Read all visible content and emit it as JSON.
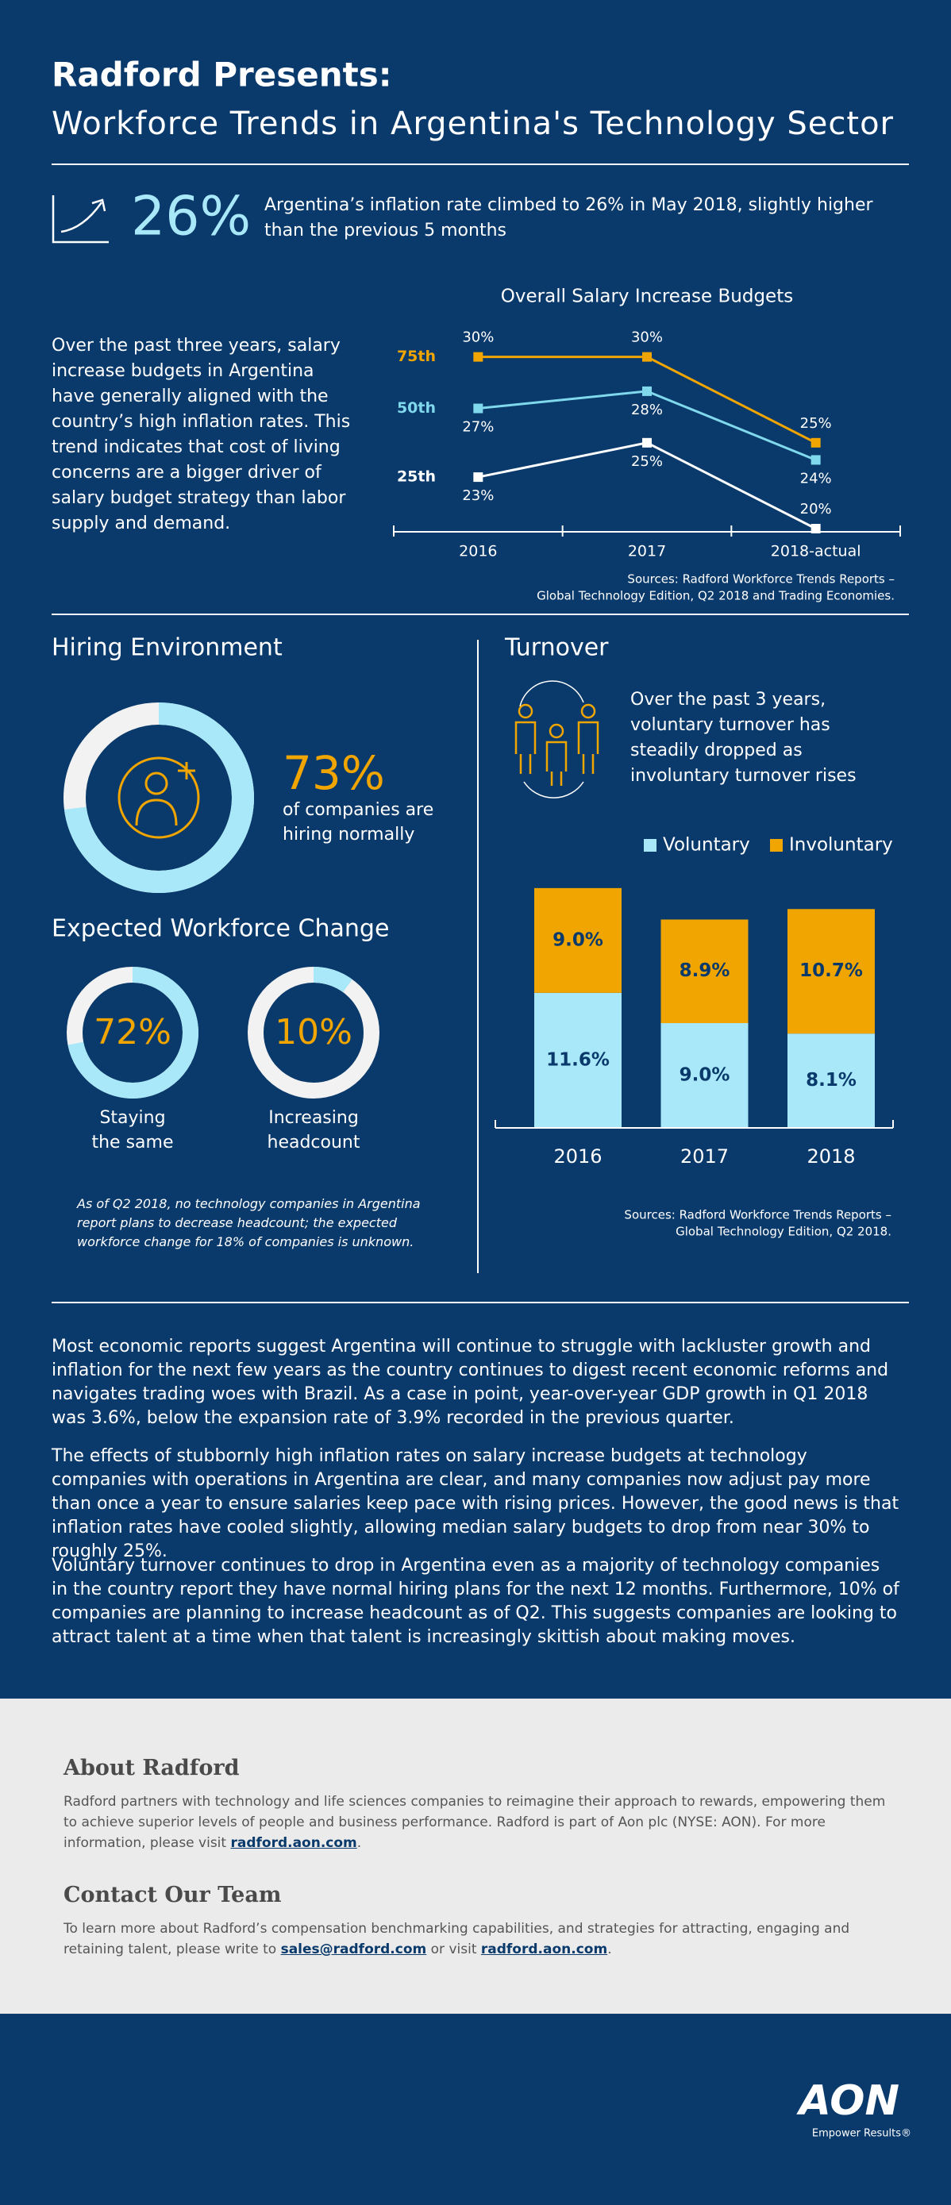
{
  "header": {
    "title": "Radford Presents:",
    "subtitle": "Workforce Trends in Argentina's Technology Sector"
  },
  "inflation": {
    "value_label": "26%",
    "text": "Argentina’s inflation rate climbed to 26% in May 2018, slightly higher than the previous 5 months"
  },
  "salary_text": "Over the past three years, salary increase budgets in Argentina have generally aligned with the country’s high inflation rates. This trend indicates that cost of living concerns are a bigger driver of salary budget strategy than labor supply and demand.",
  "sources_1": [
    "Sources: Radford Workforce Trends Reports –",
    "Global Technology Edition, Q2 2018 and Trading Economies."
  ],
  "hiring_heading": "Hiring Environment",
  "workforce_heading": "Expected Workforce Change",
  "workforce_note": "As of Q2 2018, no technology companies in Argentina report plans to decrease headcount; the expected workforce change for 18% of companies is unknown.",
  "turnover_heading": "Turnover",
  "turnover_text": "Over the past 3 years, voluntary turnover has steadily dropped as involuntary turnover rises",
  "sources_2": [
    "Sources: Radford Workforce Trends Reports –",
    "Global Technology Edition, Q2 2018."
  ],
  "paragraphs": [
    "Most economic reports suggest Argentina will continue to struggle with lackluster growth and inflation for the next few years as the country continues to digest recent economic reforms and navigates trading woes with Brazil. As a case in point, year-over-year GDP growth in Q1 2018 was 3.6%, below the expansion rate of 3.9% recorded in the previous quarter.",
    "The effects of stubbornly high inflation rates on salary increase budgets at technology companies with operations in Argentina are clear, and many companies now adjust pay more than once a year to ensure salaries keep pace with rising prices. However, the good news is that inflation rates have cooled slightly, allowing median salary budgets to drop from near 30% to roughly 25%.",
    "Voluntary turnover continues to drop in Argentina even as a majority of technology companies in the country report they have normal hiring plans for the next 12 months. Furthermore, 10% of companies are planning to increase headcount as of Q2. This suggests companies are looking to attract talent at a time when that talent is increasingly skittish about making moves."
  ],
  "about": {
    "heading": "About Radford",
    "text": "Radford partners with technology and life sciences companies to reimagine their approach to rewards, empowering them to achieve superior levels of people and business performance. Radford is part of Aon plc (NYSE: AON). For more information, please visit",
    "link": "radford.aon.com",
    "end": "."
  },
  "contact": {
    "heading": "Contact Our Team",
    "text": "To learn more about Radford’s compensation benchmarking capabilities, and strategies for attracting, engaging and retaining talent, please write to",
    "email": "sales@radford.com",
    "middle": "or visit",
    "link": "radford.aon.com",
    "end": "."
  },
  "footer": {
    "logo": "AON",
    "tagline": "Empower Results®"
  },
  "chart_data": [
    {
      "type": "line",
      "title": "Overall Salary Increase Budgets",
      "categories": [
        "2016",
        "2017",
        "2018-actual"
      ],
      "series": [
        {
          "name": "75th",
          "color": "#f0a500",
          "values": [
            30,
            30,
            25
          ],
          "value_labels": [
            "30%",
            "30%",
            "25%"
          ]
        },
        {
          "name": "50th",
          "color": "#7fd8ec",
          "values": [
            27,
            28,
            24
          ],
          "value_labels": [
            "27%",
            "28%",
            "24%"
          ]
        },
        {
          "name": "25th",
          "color": "#ffffff",
          "values": [
            23,
            25,
            20
          ],
          "value_labels": [
            "23%",
            "25%",
            "20%"
          ]
        }
      ],
      "ylim": [
        20,
        31
      ]
    },
    {
      "type": "bar",
      "stacked": true,
      "categories": [
        "2016",
        "2017",
        "2018"
      ],
      "series": [
        {
          "name": "Voluntary",
          "color": "#a8e8f8",
          "values": [
            11.6,
            9.0,
            8.1
          ],
          "value_labels": [
            "11.6%",
            "9.0%",
            "8.1%"
          ]
        },
        {
          "name": "Involuntary",
          "color": "#f0a500",
          "values": [
            9.0,
            8.9,
            10.7
          ],
          "value_labels": [
            "9.0%",
            "8.9%",
            "10.7%"
          ]
        }
      ],
      "ylim": [
        0,
        21
      ],
      "legend": "top-right"
    },
    {
      "type": "pie",
      "values": [
        73
      ],
      "value_labels": [
        "73%"
      ],
      "color": "#a8e8f8",
      "caption": [
        "of companies are",
        "hiring normally"
      ]
    },
    {
      "type": "pie",
      "values": [
        72
      ],
      "value_labels": [
        "72%"
      ],
      "color": "#a8e8f8",
      "caption": [
        "Staying",
        "the same"
      ]
    },
    {
      "type": "pie",
      "values": [
        10
      ],
      "value_labels": [
        "10%"
      ],
      "color": "#a8e8f8",
      "caption": [
        "Increasing",
        "headcount"
      ]
    }
  ]
}
